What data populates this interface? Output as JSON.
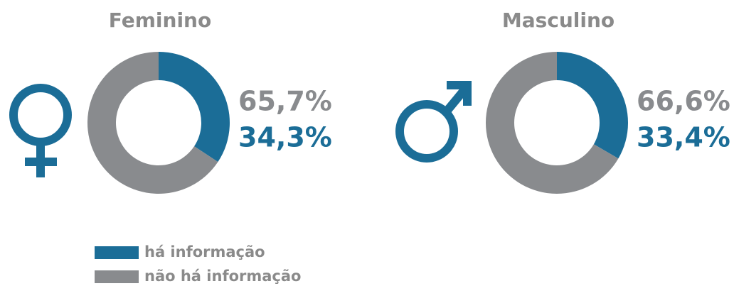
{
  "chart_data": [
    {
      "type": "pie",
      "title": "Feminino",
      "categories": [
        "há informação",
        "não há informação"
      ],
      "values": [
        34.3,
        65.7
      ],
      "value_labels": [
        "34,3%",
        "65,7%"
      ],
      "colors": [
        "#1b6d97",
        "#898b8e"
      ]
    },
    {
      "type": "pie",
      "title": "Masculino",
      "categories": [
        "há informação",
        "não há informação"
      ],
      "values": [
        33.4,
        66.6
      ],
      "value_labels": [
        "33,4%",
        "66,6%"
      ],
      "colors": [
        "#1b6d97",
        "#898b8e"
      ]
    }
  ]
}
